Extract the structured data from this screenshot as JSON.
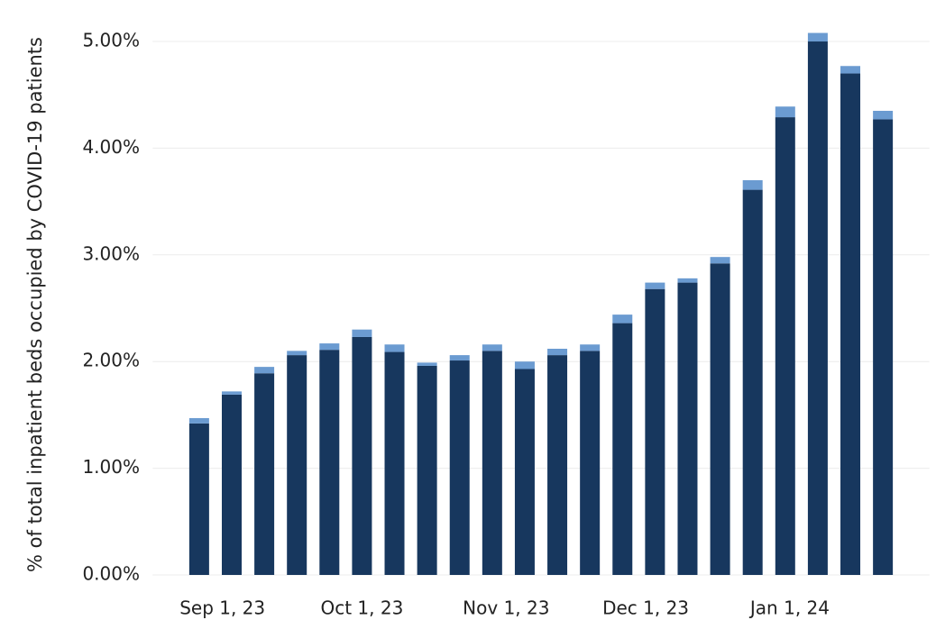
{
  "chart_data": {
    "type": "stacked-bar",
    "y_label": "% of total inpatient beds occupied by COVID-19 patients",
    "x": [
      "2023-08-27",
      "2023-09-03",
      "2023-09-10",
      "2023-09-17",
      "2023-09-24",
      "2023-10-01",
      "2023-10-08",
      "2023-10-15",
      "2023-10-22",
      "2023-10-29",
      "2023-11-05",
      "2023-11-12",
      "2023-11-19",
      "2023-11-26",
      "2023-12-03",
      "2023-12-10",
      "2023-12-17",
      "2023-12-24",
      "2023-12-31",
      "2024-01-07",
      "2024-01-14",
      "2024-01-21"
    ],
    "series": [
      {
        "color": "#17375e",
        "values": [
          1.42,
          1.69,
          1.89,
          2.06,
          2.11,
          2.23,
          2.09,
          1.96,
          2.01,
          2.1,
          1.93,
          2.06,
          2.1,
          2.36,
          2.68,
          2.74,
          2.92,
          3.61,
          4.29,
          5.0,
          4.7,
          4.27
        ]
      },
      {
        "color": "#6b9bd1",
        "values": [
          0.05,
          0.03,
          0.06,
          0.04,
          0.06,
          0.07,
          0.07,
          0.03,
          0.05,
          0.06,
          0.07,
          0.06,
          0.06,
          0.08,
          0.06,
          0.04,
          0.06,
          0.09,
          0.1,
          0.08,
          0.07,
          0.08
        ]
      }
    ],
    "xlim": [
      "2023-08-17",
      "2024-01-31"
    ],
    "xticks": [
      {
        "value": "2023-09-01",
        "label": "Sep 1, 23"
      },
      {
        "value": "2023-10-01",
        "label": "Oct 1, 23"
      },
      {
        "value": "2023-11-01",
        "label": "Nov 1, 23"
      },
      {
        "value": "2023-12-01",
        "label": "Dec 1, 23"
      },
      {
        "value": "2024-01-01",
        "label": "Jan 1, 24"
      }
    ],
    "ylim": [
      0,
      5.3
    ],
    "yticks": [
      {
        "value": 0,
        "label": "0.00%"
      },
      {
        "value": 1,
        "label": "1.00%"
      },
      {
        "value": 2,
        "label": "2.00%"
      },
      {
        "value": 3,
        "label": "3.00%"
      },
      {
        "value": 4,
        "label": "4.00%"
      },
      {
        "value": 5,
        "label": "5.00%"
      }
    ],
    "grid": true
  }
}
